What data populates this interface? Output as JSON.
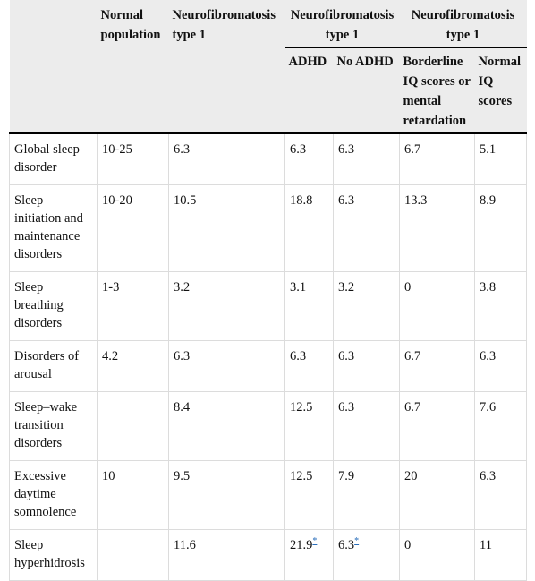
{
  "header": {
    "blank": "",
    "normal_population": "Normal population",
    "nf1": "Neurofibromatosis type 1",
    "nf1_adhd_group": "Neurofibromatosis type 1",
    "nf1_iq_group": "Neurofibromatosis type 1",
    "sub": {
      "adhd": "ADHD",
      "no_adhd": "No ADHD",
      "borderline": "Borderline IQ scores or mental retardation",
      "normal_iq": "Normal IQ scores"
    }
  },
  "rows": [
    {
      "label": "Global sleep disorder",
      "normal": "10-25",
      "nf1": "6.3",
      "adhd": "6.3",
      "no_adhd": "6.3",
      "borderline": "6.7",
      "normal_iq": "5.1"
    },
    {
      "label": "Sleep initiation and maintenance disorders",
      "normal": "10-20",
      "nf1": "10.5",
      "adhd": "18.8",
      "no_adhd": "6.3",
      "borderline": "13.3",
      "normal_iq": "8.9"
    },
    {
      "label": "Sleep breathing disorders",
      "normal": "1-3",
      "nf1": "3.2",
      "adhd": "3.1",
      "no_adhd": "3.2",
      "borderline": "0",
      "normal_iq": "3.8"
    },
    {
      "label": "Disorders of arousal",
      "normal": "4.2",
      "nf1": "6.3",
      "adhd": "6.3",
      "no_adhd": "6.3",
      "borderline": "6.7",
      "normal_iq": "6.3"
    },
    {
      "label": "Sleep–wake transition disorders",
      "normal": "",
      "nf1": "8.4",
      "adhd": "12.5",
      "no_adhd": "6.3",
      "borderline": "6.7",
      "normal_iq": "7.6"
    },
    {
      "label": "Excessive daytime somnolence",
      "normal": "10",
      "nf1": "9.5",
      "adhd": "12.5",
      "no_adhd": "7.9",
      "borderline": "20",
      "normal_iq": "6.3"
    },
    {
      "label": "Sleep hyperhidrosis",
      "normal": "",
      "nf1": "11.6",
      "adhd": "21.9",
      "no_adhd": "6.3",
      "borderline": "0",
      "normal_iq": "11"
    }
  ],
  "footnote_marker": "*"
}
